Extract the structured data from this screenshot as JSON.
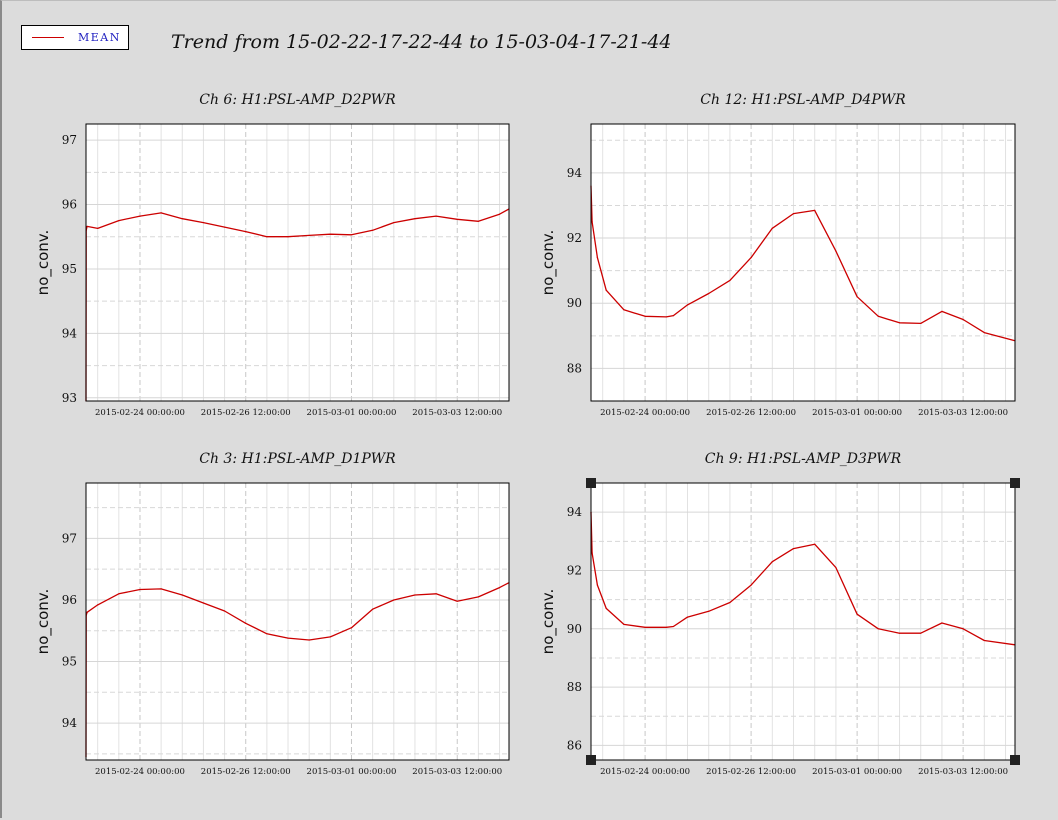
{
  "title": "Trend from 15-02-22-17-22-44 to 15-03-04-17-21-44",
  "legend": {
    "label": "MEAN",
    "color": "#cc0000"
  },
  "chart_data": [
    {
      "type": "line",
      "title": "Ch 6: H1:PSL-AMP_D2PWR",
      "ylabel": "no_conv.",
      "xlabel": "",
      "xlim": [
        "2015-02-22 17:22:44",
        "2015-03-04 17:21:44"
      ],
      "ylim": [
        92.95,
        97.25
      ],
      "yticks": [
        93,
        94,
        95,
        96,
        97
      ],
      "xticks": [
        "2015-02-24 00:00:00",
        "2015-02-26 12:00:00",
        "2015-03-01 00:00:00",
        "2015-03-03 12:00:00"
      ],
      "grid": true,
      "series": [
        {
          "color": "#cc0000",
          "x": [
            "2015-02-22 17:22:44",
            "2015-02-22 17:30",
            "2015-02-22 18:00",
            "2015-02-23 00:00",
            "2015-02-23 12:00",
            "2015-02-24 00:00",
            "2015-02-24 12:00",
            "2015-02-25 00:00",
            "2015-02-25 12:00",
            "2015-02-26 00:00",
            "2015-02-26 12:00",
            "2015-02-27 00:00",
            "2015-02-27 12:00",
            "2015-02-28 00:00",
            "2015-02-28 12:00",
            "2015-03-01 00:00",
            "2015-03-01 12:00",
            "2015-03-02 00:00",
            "2015-03-02 12:00",
            "2015-03-03 00:00",
            "2015-03-03 12:00",
            "2015-03-04 00:00",
            "2015-03-04 12:00",
            "2015-03-04 17:21:44"
          ],
          "y": [
            92.95,
            95.6,
            95.66,
            95.63,
            95.75,
            95.82,
            95.87,
            95.78,
            95.72,
            95.65,
            95.58,
            95.5,
            95.5,
            95.52,
            95.54,
            95.53,
            95.6,
            95.72,
            95.78,
            95.82,
            95.77,
            95.74,
            95.85,
            95.93
          ]
        }
      ]
    },
    {
      "type": "line",
      "title": "Ch 12: H1:PSL-AMP_D4PWR",
      "ylabel": "no_conv.",
      "xlabel": "",
      "xlim": [
        "2015-02-22 17:22:44",
        "2015-03-04 17:21:44"
      ],
      "ylim": [
        87,
        95.5
      ],
      "yticks": [
        88,
        90,
        92,
        94
      ],
      "xticks": [
        "2015-02-24 00:00:00",
        "2015-02-26 12:00:00",
        "2015-03-01 00:00:00",
        "2015-03-03 12:00:00"
      ],
      "grid": true,
      "series": [
        {
          "color": "#cc0000",
          "x": [
            "2015-02-22 17:22:44",
            "2015-02-22 18:00",
            "2015-02-22 21:00",
            "2015-02-23 02:00",
            "2015-02-23 12:00",
            "2015-02-24 00:00",
            "2015-02-24 12:00",
            "2015-02-24 16:00",
            "2015-02-25 00:00",
            "2015-02-25 12:00",
            "2015-02-26 00:00",
            "2015-02-26 12:00",
            "2015-02-27 00:00",
            "2015-02-27 12:00",
            "2015-02-28 00:00",
            "2015-02-28 12:00",
            "2015-03-01 00:00",
            "2015-03-01 12:00",
            "2015-03-02 00:00",
            "2015-03-02 12:00",
            "2015-03-03 00:00",
            "2015-03-03 12:00",
            "2015-03-04 00:00",
            "2015-03-04 17:21:44"
          ],
          "y": [
            93.6,
            92.5,
            91.4,
            90.4,
            89.8,
            89.6,
            89.58,
            89.62,
            89.95,
            90.3,
            90.7,
            91.4,
            92.3,
            92.75,
            92.85,
            91.6,
            90.2,
            89.6,
            89.4,
            89.38,
            89.75,
            89.5,
            89.1,
            88.85
          ]
        }
      ]
    },
    {
      "type": "line",
      "title": "Ch 3: H1:PSL-AMP_D1PWR",
      "ylabel": "no_conv.",
      "xlabel": "",
      "xlim": [
        "2015-02-22 17:22:44",
        "2015-03-04 17:21:44"
      ],
      "ylim": [
        93.4,
        97.9
      ],
      "yticks": [
        94,
        95,
        96,
        97
      ],
      "xticks": [
        "2015-02-24 00:00:00",
        "2015-02-26 12:00:00",
        "2015-03-01 00:00:00",
        "2015-03-03 12:00:00"
      ],
      "grid": true,
      "series": [
        {
          "color": "#cc0000",
          "x": [
            "2015-02-22 17:22:44",
            "2015-02-22 17:30",
            "2015-02-22 18:00",
            "2015-02-23 00:00",
            "2015-02-23 12:00",
            "2015-02-24 00:00",
            "2015-02-24 12:00",
            "2015-02-25 00:00",
            "2015-02-25 12:00",
            "2015-02-26 00:00",
            "2015-02-26 12:00",
            "2015-02-27 00:00",
            "2015-02-27 12:00",
            "2015-02-28 00:00",
            "2015-02-28 12:00",
            "2015-03-01 00:00",
            "2015-03-01 12:00",
            "2015-03-02 00:00",
            "2015-03-02 12:00",
            "2015-03-03 00:00",
            "2015-03-03 12:00",
            "2015-03-04 00:00",
            "2015-03-04 12:00",
            "2015-03-04 17:21:44"
          ],
          "y": [
            93.45,
            95.75,
            95.8,
            95.92,
            96.1,
            96.17,
            96.18,
            96.08,
            95.95,
            95.82,
            95.62,
            95.45,
            95.38,
            95.35,
            95.4,
            95.55,
            95.85,
            96.0,
            96.08,
            96.1,
            95.98,
            96.05,
            96.2,
            96.28
          ]
        }
      ]
    },
    {
      "type": "line",
      "title": "Ch 9: H1:PSL-AMP_D3PWR",
      "ylabel": "no_conv.",
      "xlabel": "",
      "xlim": [
        "2015-02-22 17:22:44",
        "2015-03-04 17:21:44"
      ],
      "ylim": [
        85.5,
        95.0
      ],
      "yticks": [
        86,
        88,
        90,
        92,
        94
      ],
      "xticks": [
        "2015-02-24 00:00:00",
        "2015-02-26 12:00:00",
        "2015-03-01 00:00:00",
        "2015-03-03 12:00:00"
      ],
      "grid": true,
      "series": [
        {
          "color": "#cc0000",
          "x": [
            "2015-02-22 17:22:44",
            "2015-02-22 18:00",
            "2015-02-22 21:00",
            "2015-02-23 02:00",
            "2015-02-23 12:00",
            "2015-02-24 00:00",
            "2015-02-24 12:00",
            "2015-02-24 16:00",
            "2015-02-25 00:00",
            "2015-02-25 12:00",
            "2015-02-26 00:00",
            "2015-02-26 12:00",
            "2015-02-27 00:00",
            "2015-02-27 12:00",
            "2015-02-28 00:00",
            "2015-02-28 12:00",
            "2015-03-01 00:00",
            "2015-03-01 12:00",
            "2015-03-02 00:00",
            "2015-03-02 12:00",
            "2015-03-03 00:00",
            "2015-03-03 12:00",
            "2015-03-04 00:00",
            "2015-03-04 17:21:44"
          ],
          "y": [
            94.0,
            92.6,
            91.5,
            90.7,
            90.15,
            90.05,
            90.05,
            90.08,
            90.4,
            90.6,
            90.9,
            91.5,
            92.3,
            92.75,
            92.9,
            92.1,
            90.5,
            90.0,
            89.85,
            89.85,
            90.2,
            90.0,
            89.6,
            89.45
          ]
        }
      ]
    }
  ]
}
